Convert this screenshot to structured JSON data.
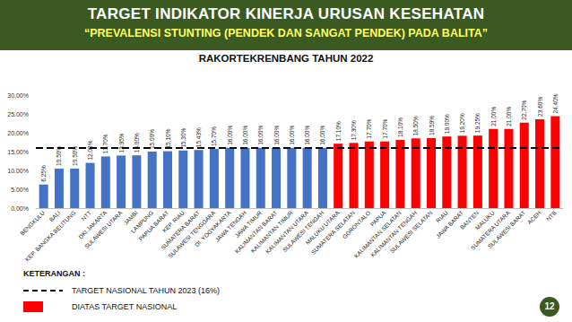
{
  "title": "TARGET INDIKATOR KINERJA URUSAN KESEHATAN",
  "subtitle": "“PREVALENSI STUNTING (PENDEK DAN SANGAT PENDEK) PADA BALITA”",
  "event": "RAKORTEKRENBANG TAHUN 2022",
  "page_number": "12",
  "chart_data": {
    "type": "bar",
    "categories": [
      "BENGKULU",
      "BALI",
      "KEP. BANGKA BELITUNG",
      "NTT",
      "DKI JAKARTA",
      "SULAWESI UTARA",
      "JAMBI",
      "LAMPUNG",
      "PAPUA BARAT",
      "KEP. RIAU",
      "SUMATERA BARAT",
      "SULAWESI TENGGARA",
      "DI. YOGYAKARTA",
      "JAWA TENGAH",
      "JAWA TIMUR",
      "KALIMANTAN BARAT",
      "KALIMANTAN TIMUR",
      "KALIMANTAN UTARA",
      "SULAWESI TENGAH",
      "MALUKU UTARA",
      "SUMATERA SELATAN",
      "GORONTALO",
      "PAPUA",
      "KALIMANTAN SELATAN",
      "KALIMANTAN TENGAH",
      "SULAWESI SELATAN",
      "RIAU",
      "JAWA BARAT",
      "BANTEN",
      "MALUKU",
      "SUMATERA UTARA",
      "SULAWESI BARAT",
      "ACEH",
      "NTB"
    ],
    "values": [
      6.25,
      10.5,
      10.5,
      12,
      13.7,
      13.95,
      14,
      15,
      15.1,
      15.3,
      15.43,
      15.7,
      16,
      16,
      16,
      16,
      16,
      16,
      16,
      17.1,
      17.3,
      17.7,
      17.7,
      18.1,
      18.5,
      18.59,
      19,
      19.2,
      19.25,
      21,
      21,
      22.7,
      23.6,
      24.4
    ],
    "value_labels": [
      "6.25%",
      "10.50%",
      "10.50%",
      "12.00%",
      "13.70%",
      "13.95%",
      "14.00%",
      "15.00%",
      "15.10%",
      "15.30%",
      "15.43%",
      "15.70%",
      "16.00%",
      "16.00%",
      "16.00%",
      "16.00%",
      "16.00%",
      "16.00%",
      "16.00%",
      "17.10%",
      "17.30%",
      "17.70%",
      "17.70%",
      "18.10%",
      "18.50%",
      "18.59%",
      "19.00%",
      "19.20%",
      "19.25%",
      "21.00%",
      "21.00%",
      "22.70%",
      "23.60%",
      "24.40%"
    ],
    "colors": [
      "#4472c4",
      "#4472c4",
      "#4472c4",
      "#4472c4",
      "#4472c4",
      "#4472c4",
      "#4472c4",
      "#4472c4",
      "#4472c4",
      "#4472c4",
      "#4472c4",
      "#4472c4",
      "#4472c4",
      "#4472c4",
      "#4472c4",
      "#4472c4",
      "#4472c4",
      "#4472c4",
      "#4472c4",
      "#ff0000",
      "#ff0000",
      "#ff0000",
      "#ff0000",
      "#ff0000",
      "#ff0000",
      "#ff0000",
      "#ff0000",
      "#ff0000",
      "#ff0000",
      "#ff0000",
      "#ff0000",
      "#ff0000",
      "#ff0000",
      "#ff0000"
    ],
    "ylim": [
      0,
      30
    ],
    "yticks": [
      {
        "value": 0,
        "label": "0.00%"
      },
      {
        "value": 5,
        "label": "5.00%"
      },
      {
        "value": 10,
        "label": "10.00%"
      },
      {
        "value": 15,
        "label": "15.00%"
      },
      {
        "value": 20,
        "label": "20.00%"
      },
      {
        "value": 25,
        "label": "25.00%"
      },
      {
        "value": 30,
        "label": "30.00%"
      }
    ],
    "grid": false,
    "data_labels": true,
    "target_line": {
      "value": 16,
      "label": "TARGET NASIONAL TAHUN 2023   (16%)",
      "line_style": "dashed",
      "color": "#000000"
    },
    "legend_title": "KETERANGAN :",
    "above_target": {
      "label": "DIATAS TARGET NASIONAL",
      "color": "#ff0000"
    }
  }
}
